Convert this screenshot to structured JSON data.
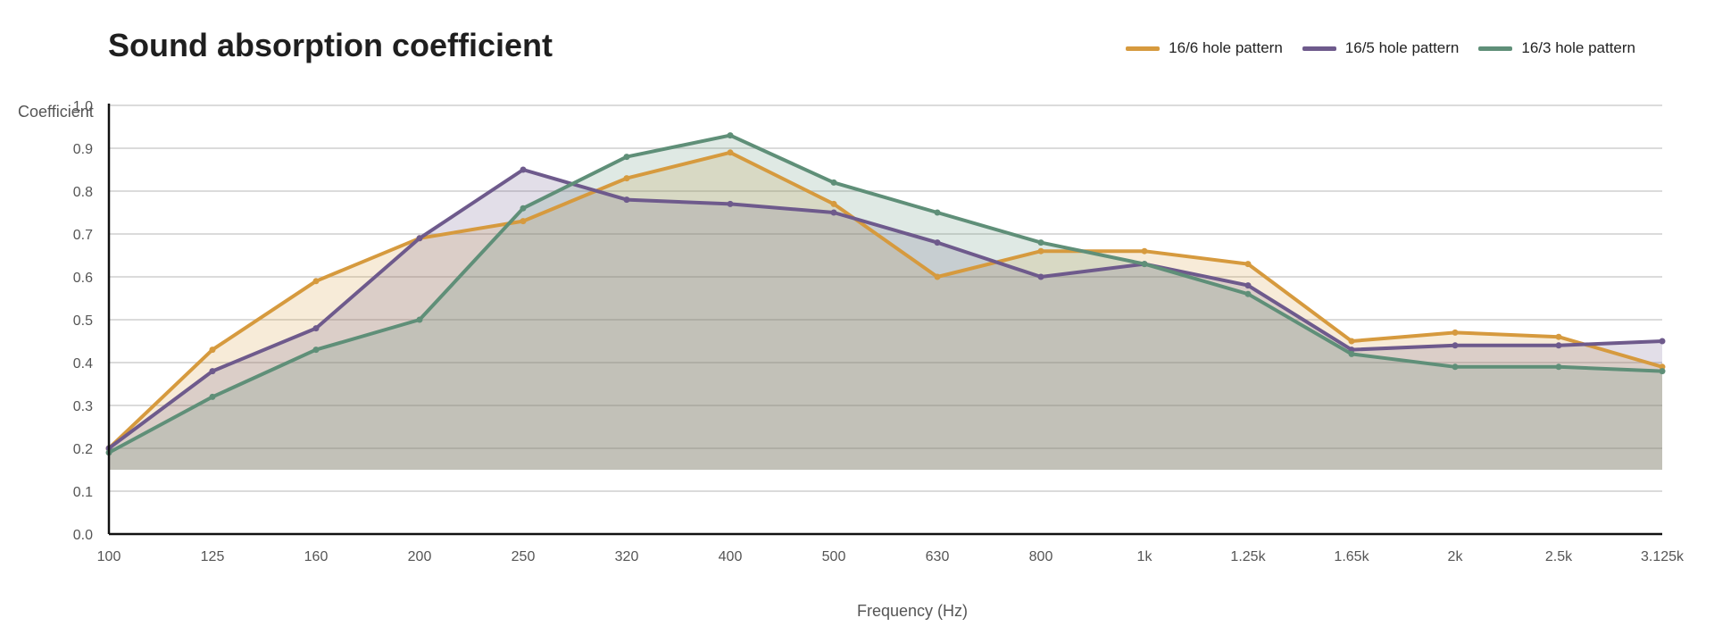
{
  "chart_data": {
    "type": "area",
    "title": "Sound absorption coefficient",
    "xlabel": "Frequency (Hz)",
    "ylabel": "Coefficient",
    "categories": [
      "100",
      "125",
      "160",
      "200",
      "250",
      "320",
      "400",
      "500",
      "630",
      "800",
      "1k",
      "1.25k",
      "1.65k",
      "2k",
      "2.5k",
      "3.125k"
    ],
    "ylim": [
      0,
      1.0
    ],
    "yticks": [
      "0.0",
      "0.1",
      "0.2",
      "0.3",
      "0.4",
      "0.5",
      "0.6",
      "0.7",
      "0.8",
      "0.9",
      "1.0"
    ],
    "grid": true,
    "legend_position": "top-right",
    "series": [
      {
        "name": "16/6 hole pattern",
        "color": "#d69a3e",
        "values": [
          0.2,
          0.43,
          0.59,
          0.69,
          0.73,
          0.83,
          0.89,
          0.77,
          0.6,
          0.66,
          0.66,
          0.63,
          0.45,
          0.47,
          0.46,
          0.39
        ]
      },
      {
        "name": "16/5 hole pattern",
        "color": "#6e5a8c",
        "values": [
          0.2,
          0.38,
          0.48,
          0.69,
          0.85,
          0.78,
          0.77,
          0.75,
          0.68,
          0.6,
          0.63,
          0.58,
          0.43,
          0.44,
          0.44,
          0.45
        ]
      },
      {
        "name": "16/3 hole pattern",
        "color": "#5f8f78",
        "values": [
          0.19,
          0.32,
          0.43,
          0.5,
          0.76,
          0.88,
          0.93,
          0.82,
          0.75,
          0.68,
          0.63,
          0.56,
          0.42,
          0.39,
          0.39,
          0.38
        ]
      }
    ]
  }
}
